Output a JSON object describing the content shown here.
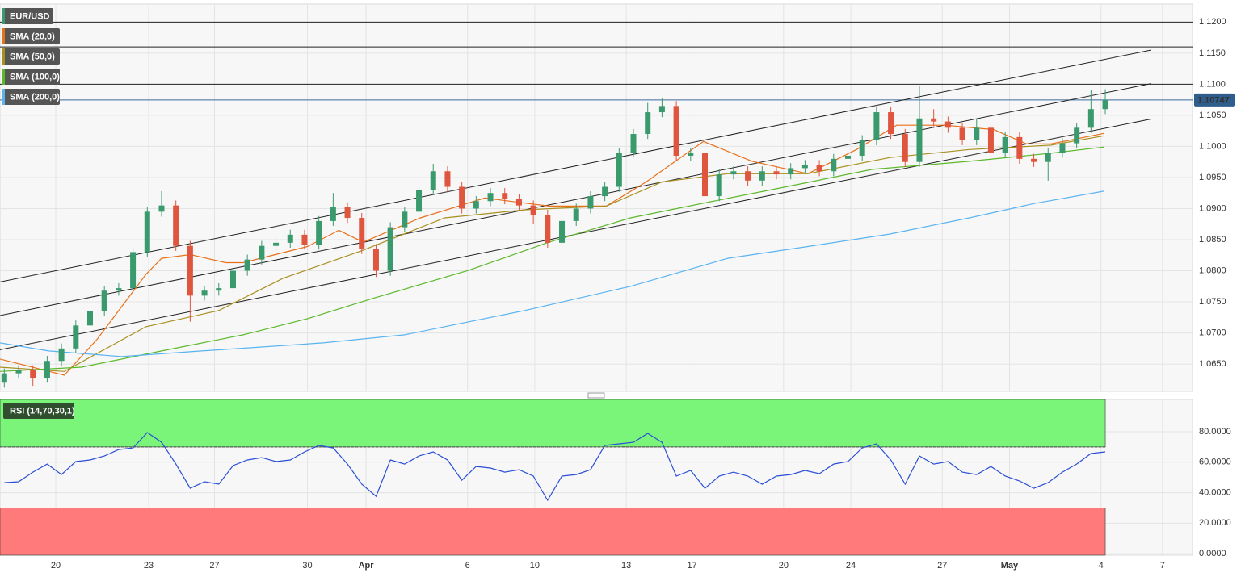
{
  "chart_data": [
    {
      "type": "candlestick",
      "title": "EUR/USD",
      "up_color": "#3a9a6e",
      "down_color": "#e0553e",
      "xlim": [
        -0.3,
        83.1
      ],
      "xticks": [
        {
          "value": 3.6,
          "label": "20"
        },
        {
          "value": 10.1,
          "label": "23"
        },
        {
          "value": 14.7,
          "label": "27"
        },
        {
          "value": 21.2,
          "label": "30"
        },
        {
          "value": 25.3,
          "label": "Apr"
        },
        {
          "value": 32.4,
          "label": "6"
        },
        {
          "value": 37.1,
          "label": "10"
        },
        {
          "value": 43.5,
          "label": "13"
        },
        {
          "value": 48.1,
          "label": "17"
        },
        {
          "value": 54.5,
          "label": "20"
        },
        {
          "value": 59.2,
          "label": "24"
        },
        {
          "value": 65.6,
          "label": "27"
        },
        {
          "value": 70.3,
          "label": "May"
        },
        {
          "value": 76.7,
          "label": "4"
        },
        {
          "value": 81.0,
          "label": "7"
        }
      ],
      "ylim": [
        1.0606,
        1.1229
      ],
      "yticks": [
        {
          "value": 1.065,
          "label": "1.0650"
        },
        {
          "value": 1.07,
          "label": "1.0700"
        },
        {
          "value": 1.075,
          "label": "1.0750"
        },
        {
          "value": 1.08,
          "label": "1.0800"
        },
        {
          "value": 1.085,
          "label": "1.0850"
        },
        {
          "value": 1.09,
          "label": "1.0900"
        },
        {
          "value": 1.095,
          "label": "1.0950"
        },
        {
          "value": 1.1,
          "label": "1.1000"
        },
        {
          "value": 1.105,
          "label": "1.1050"
        },
        {
          "value": 1.11,
          "label": "1.1100"
        },
        {
          "value": 1.115,
          "label": "1.1150"
        },
        {
          "value": 1.12,
          "label": "1.1200"
        }
      ],
      "grid": true,
      "open": [
        1.062,
        1.0635,
        1.064,
        1.0628,
        1.0655,
        1.0675,
        1.0712,
        1.0735,
        1.0768,
        1.0772,
        1.083,
        1.0895,
        1.0905,
        1.084,
        1.076,
        1.0768,
        1.0772,
        1.08,
        1.0818,
        1.084,
        1.0845,
        1.0858,
        1.0842,
        1.088,
        1.0902,
        1.0885,
        1.0835,
        1.08,
        1.087,
        1.0895,
        1.093,
        1.096,
        1.0935,
        1.09,
        1.0912,
        1.0925,
        1.0915,
        1.0905,
        1.089,
        1.0845,
        1.088,
        1.09,
        1.092,
        1.0935,
        1.099,
        1.102,
        1.1055,
        1.1065,
        1.0985,
        1.099,
        1.092,
        1.0955,
        1.096,
        1.0945,
        1.096,
        1.0955,
        1.0965,
        1.097,
        1.096,
        1.098,
        1.0985,
        1.101,
        1.1055,
        1.102,
        1.0975,
        1.1045,
        1.104,
        1.103,
        1.101,
        1.103,
        1.099,
        1.1015,
        1.098,
        1.0975,
        1.099,
        1.1005,
        1.103,
        1.106
      ],
      "high": [
        1.0643,
        1.0648,
        1.0648,
        1.0663,
        1.0683,
        1.072,
        1.0743,
        1.0776,
        1.078,
        1.0838,
        1.0903,
        1.0928,
        1.0913,
        1.0848,
        1.0776,
        1.078,
        1.0808,
        1.0826,
        1.0848,
        1.0853,
        1.0866,
        1.0866,
        1.0888,
        1.0925,
        1.091,
        1.0893,
        1.0843,
        1.0878,
        1.0903,
        1.0938,
        1.0972,
        1.0968,
        1.0943,
        1.092,
        1.0933,
        1.0933,
        1.0923,
        1.0913,
        1.0898,
        1.0888,
        1.0908,
        1.0928,
        1.0943,
        1.0998,
        1.1028,
        1.107,
        1.1077,
        1.1073,
        1.0998,
        1.0998,
        1.0963,
        1.0968,
        1.0968,
        1.0968,
        1.0968,
        1.0973,
        1.0978,
        1.0978,
        1.0988,
        1.0993,
        1.1018,
        1.1063,
        1.1063,
        1.1028,
        1.1097,
        1.106,
        1.1048,
        1.1038,
        1.1045,
        1.1038,
        1.1023,
        1.1023,
        1.0988,
        1.0998,
        1.1013,
        1.1038,
        1.109,
        1.1092
      ],
      "low": [
        1.0612,
        1.0627,
        1.0615,
        1.062,
        1.0647,
        1.0667,
        1.0704,
        1.0727,
        1.076,
        1.0764,
        1.0822,
        1.0887,
        1.0832,
        1.0718,
        1.0752,
        1.076,
        1.0764,
        1.0792,
        1.081,
        1.0832,
        1.0837,
        1.0834,
        1.0834,
        1.0872,
        1.0877,
        1.0827,
        1.079,
        1.0792,
        1.0862,
        1.0887,
        1.0922,
        1.0927,
        1.0892,
        1.0892,
        1.0904,
        1.0907,
        1.0897,
        1.0875,
        1.0837,
        1.0837,
        1.0872,
        1.0892,
        1.0912,
        1.0927,
        1.0982,
        1.1012,
        1.1047,
        1.0977,
        1.0977,
        1.091,
        1.0912,
        1.0947,
        1.0937,
        1.0937,
        1.0947,
        1.0947,
        1.0957,
        1.0952,
        1.0952,
        1.0972,
        1.0977,
        1.1002,
        1.1012,
        1.0967,
        1.0967,
        1.1032,
        1.1022,
        1.1002,
        1.1002,
        1.096,
        1.0982,
        1.0972,
        1.0967,
        1.0945,
        1.0982,
        1.0997,
        1.1022,
        1.1052
      ],
      "close": [
        1.0635,
        1.064,
        1.0628,
        1.0655,
        1.0675,
        1.0712,
        1.0735,
        1.0768,
        1.0772,
        1.083,
        1.0895,
        1.0905,
        1.084,
        1.076,
        1.0768,
        1.0772,
        1.08,
        1.0818,
        1.084,
        1.0845,
        1.0858,
        1.0842,
        1.088,
        1.0902,
        1.0885,
        1.0835,
        1.08,
        1.087,
        1.0895,
        1.093,
        1.096,
        1.0935,
        1.09,
        1.0912,
        1.0925,
        1.0915,
        1.0905,
        1.089,
        1.0845,
        1.088,
        1.09,
        1.092,
        1.0935,
        1.099,
        1.102,
        1.1055,
        1.1065,
        1.0985,
        1.099,
        1.092,
        1.0955,
        1.096,
        1.0945,
        1.096,
        1.0955,
        1.0965,
        1.097,
        1.096,
        1.098,
        1.0985,
        1.101,
        1.1055,
        1.102,
        1.0975,
        1.1045,
        1.104,
        1.103,
        1.101,
        1.103,
        1.099,
        1.1015,
        1.098,
        1.0975,
        1.099,
        1.1005,
        1.103,
        1.106,
        1.10747
      ],
      "last_price": 1.10747,
      "series": [
        {
          "name": "SMA (20,0)",
          "color": "#e8701a",
          "x": [
            -0.3,
            4.2,
            6.5,
            9.9,
            11.0,
            13.0,
            15.5,
            16.7,
            21.2,
            23.4,
            25.1,
            29.1,
            33.6,
            38.1,
            42.1,
            44.9,
            48.9,
            52.3,
            56.2,
            59.6,
            62.4,
            65.8,
            69.2,
            71.5,
            73.2,
            76.9
          ],
          "values": [
            1.0658,
            1.0632,
            1.069,
            1.0794,
            1.082,
            1.0826,
            1.0813,
            1.0813,
            1.0839,
            1.0865,
            1.0846,
            1.0885,
            1.0917,
            1.0904,
            1.0904,
            1.0943,
            1.1008,
            1.0976,
            1.0956,
            1.0995,
            1.1034,
            1.1034,
            1.1027,
            1.1004,
            1.1004,
            1.1021
          ]
        },
        {
          "name": "SMA (50,0)",
          "color": "#a89020",
          "x": [
            -0.3,
            4.2,
            9.9,
            15.0,
            19.5,
            25.1,
            30.8,
            36.4,
            42.1,
            46.0,
            50.6,
            56.2,
            61.9,
            67.5,
            73.2,
            76.9
          ],
          "values": [
            1.0645,
            1.0638,
            1.071,
            1.0736,
            1.0788,
            1.0833,
            1.0885,
            1.0898,
            1.0904,
            1.0943,
            1.0956,
            1.0956,
            1.0982,
            1.0995,
            1.1002,
            1.1017
          ]
        },
        {
          "name": "SMA (100,0)",
          "color": "#5cb82a",
          "x": [
            -0.3,
            5.4,
            11.0,
            16.7,
            21.2,
            25.7,
            32.5,
            38.1,
            43.8,
            49.4,
            55.1,
            60.7,
            67.5,
            73.2,
            76.9
          ],
          "values": [
            1.0638,
            1.0645,
            1.0671,
            1.0697,
            1.0723,
            1.0755,
            1.0801,
            1.0846,
            1.0885,
            1.0911,
            1.0937,
            1.0963,
            1.0976,
            1.0989,
            1.0999
          ]
        },
        {
          "name": "SMA (200,0)",
          "color": "#5ab4f0",
          "x": [
            -0.3,
            3.1,
            8.2,
            13.8,
            22.3,
            28.0,
            36.4,
            43.8,
            50.6,
            56.2,
            61.9,
            67.5,
            72.0,
            76.9
          ],
          "values": [
            1.0684,
            1.0671,
            1.0662,
            1.0671,
            1.0684,
            1.0697,
            1.0736,
            1.0775,
            1.082,
            1.0839,
            1.0859,
            1.0885,
            1.0908,
            1.0928
          ]
        }
      ],
      "hlines": [
        {
          "value": 1.12,
          "color": "#222222"
        },
        {
          "value": 1.116,
          "color": "#222222"
        },
        {
          "value": 1.11,
          "color": "#222222"
        },
        {
          "value": 1.097,
          "color": "#222222"
        },
        {
          "value": 1.10747,
          "color": "#3b6a9c"
        }
      ],
      "trendlines": [
        {
          "x": [
            -0.3,
            80.2
          ],
          "values": [
            1.0782,
            1.1155
          ]
        },
        {
          "x": [
            -0.3,
            80.2
          ],
          "values": [
            1.0728,
            1.1101
          ]
        },
        {
          "x": [
            -0.3,
            80.2
          ],
          "values": [
            1.0673,
            1.1044
          ]
        }
      ]
    },
    {
      "type": "line",
      "title": "RSI (14,70,30,1)",
      "color": "#2a4fd6",
      "ylim": [
        -1,
        101.2
      ],
      "yticks": [
        {
          "value": 0,
          "label": "0.0000"
        },
        {
          "value": 20,
          "label": "20.0000"
        },
        {
          "value": 40,
          "label": "40.0000"
        },
        {
          "value": 60,
          "label": "60.0000"
        },
        {
          "value": 80,
          "label": "80.0000"
        }
      ],
      "levels": [
        70,
        30
      ],
      "level_colors": [
        "#7af57a",
        "#ff7b7b"
      ],
      "values": [
        46.6,
        47.2,
        53.5,
        58.8,
        51.9,
        60.4,
        61.5,
        64.1,
        68.3,
        69.4,
        79.5,
        73.1,
        58.8,
        42.9,
        47.2,
        45.6,
        57.8,
        61.5,
        63.0,
        60.4,
        61.5,
        66.8,
        71.0,
        69.4,
        58.8,
        45.6,
        37.6,
        61.5,
        58.8,
        64.1,
        66.8,
        61.5,
        48.2,
        57.2,
        56.2,
        53.5,
        55.1,
        50.9,
        35.0,
        50.9,
        51.9,
        55.1,
        71.0,
        72.1,
        73.1,
        78.9,
        73.1,
        50.9,
        54.6,
        42.9,
        50.9,
        53.5,
        50.9,
        45.6,
        50.9,
        51.9,
        54.6,
        52.5,
        58.8,
        60.4,
        69.4,
        72.1,
        61.5,
        45.6,
        64.1,
        58.8,
        60.4,
        53.5,
        51.9,
        57.2,
        50.9,
        47.7,
        42.9,
        46.6,
        53.5,
        58.8,
        65.7,
        66.8
      ]
    }
  ]
}
